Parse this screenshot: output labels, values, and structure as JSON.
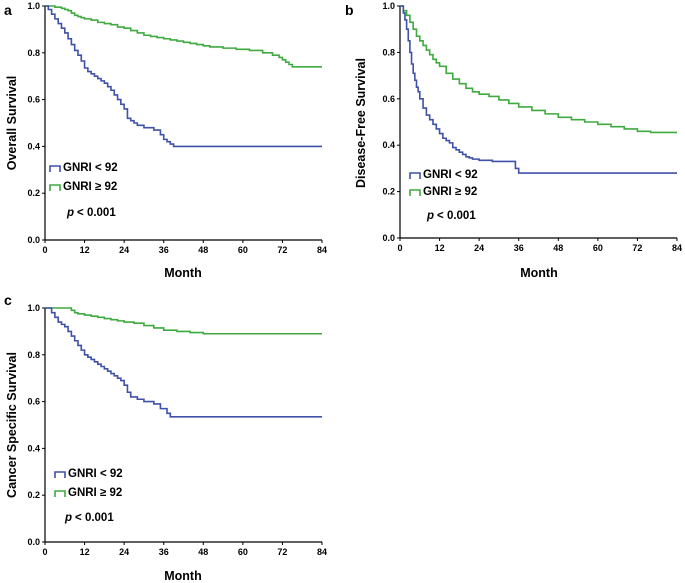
{
  "figure": {
    "width": 685,
    "height": 583
  },
  "chart_data": [
    {
      "panel": "a",
      "type": "line",
      "step": true,
      "title": "",
      "xlabel": "Month",
      "ylabel": "Overall Survival",
      "xlim": [
        0,
        84
      ],
      "ylim": [
        0,
        1.0
      ],
      "x_ticks": [
        0,
        12,
        24,
        36,
        48,
        60,
        72,
        84
      ],
      "y_ticks": [
        0.0,
        0.2,
        0.4,
        0.6,
        0.8,
        1.0
      ],
      "y_tick_labels": [
        "0.0",
        "0.2",
        "0.4",
        "0.6",
        "0.8",
        "1.0"
      ],
      "legend_position": "lower-left",
      "p_value": "< 0.001",
      "p_symbol": "p",
      "series": [
        {
          "name": "GNRI < 92",
          "color": "#3f51a8",
          "x": [
            0,
            1,
            2,
            3,
            4,
            5,
            6,
            7,
            8,
            9,
            10,
            11,
            12,
            13,
            14,
            15,
            16,
            17,
            18,
            19,
            20,
            21,
            22,
            23,
            24,
            25,
            26,
            27,
            28,
            30,
            33,
            35,
            36,
            37,
            38,
            39,
            84
          ],
          "y": [
            1.0,
            0.985,
            0.965,
            0.945,
            0.925,
            0.905,
            0.885,
            0.86,
            0.835,
            0.81,
            0.79,
            0.765,
            0.735,
            0.72,
            0.71,
            0.7,
            0.69,
            0.68,
            0.67,
            0.655,
            0.64,
            0.62,
            0.6,
            0.58,
            0.56,
            0.52,
            0.51,
            0.5,
            0.49,
            0.48,
            0.47,
            0.45,
            0.43,
            0.42,
            0.41,
            0.4,
            0.4
          ]
        },
        {
          "name": "GNRI ≥ 92",
          "color": "#3faa3f",
          "x": [
            0,
            3,
            5,
            6,
            7,
            8,
            9,
            10,
            11,
            12,
            14,
            16,
            18,
            20,
            22,
            24,
            26,
            28,
            30,
            32,
            34,
            36,
            38,
            40,
            42,
            44,
            46,
            48,
            50,
            54,
            58,
            62,
            66,
            69,
            71,
            72,
            73,
            74,
            75,
            84
          ],
          "y": [
            1.0,
            0.995,
            0.99,
            0.985,
            0.98,
            0.97,
            0.96,
            0.955,
            0.95,
            0.945,
            0.94,
            0.93,
            0.925,
            0.92,
            0.91,
            0.905,
            0.895,
            0.885,
            0.875,
            0.87,
            0.865,
            0.86,
            0.855,
            0.85,
            0.845,
            0.84,
            0.835,
            0.83,
            0.825,
            0.82,
            0.815,
            0.81,
            0.8,
            0.79,
            0.78,
            0.77,
            0.76,
            0.75,
            0.74,
            0.74
          ]
        }
      ]
    },
    {
      "panel": "b",
      "type": "line",
      "step": true,
      "title": "",
      "xlabel": "Month",
      "ylabel": "Disease-Free Survival",
      "xlim": [
        0,
        84
      ],
      "ylim": [
        0,
        1.0
      ],
      "x_ticks": [
        0,
        12,
        24,
        36,
        48,
        60,
        72,
        84
      ],
      "y_ticks": [
        0.0,
        0.2,
        0.4,
        0.6,
        0.8,
        1.0
      ],
      "y_tick_labels": [
        "0.0",
        "0.2",
        "0.4",
        "0.6",
        "0.8",
        "1.0"
      ],
      "legend_position": "lower-left",
      "p_value": "< 0.001",
      "p_symbol": "p",
      "series": [
        {
          "name": "GNRI < 92",
          "color": "#3f51a8",
          "x": [
            0,
            1,
            1.5,
            2,
            2.5,
            3,
            3.5,
            4,
            4.5,
            5,
            5.5,
            6,
            7,
            8,
            9,
            10,
            11,
            12,
            13,
            14,
            15,
            16,
            17,
            18,
            19,
            20,
            21,
            22,
            24,
            28,
            32,
            35,
            36,
            84
          ],
          "y": [
            1.0,
            0.97,
            0.94,
            0.9,
            0.85,
            0.8,
            0.75,
            0.71,
            0.68,
            0.65,
            0.63,
            0.6,
            0.56,
            0.53,
            0.51,
            0.49,
            0.47,
            0.45,
            0.43,
            0.42,
            0.41,
            0.39,
            0.38,
            0.37,
            0.36,
            0.35,
            0.345,
            0.34,
            0.335,
            0.33,
            0.33,
            0.3,
            0.28,
            0.28
          ]
        },
        {
          "name": "GNRI ≥ 92",
          "color": "#3faa3f",
          "x": [
            0,
            1,
            2,
            3,
            4,
            5,
            6,
            7,
            8,
            9,
            10,
            11,
            12,
            14,
            16,
            18,
            20,
            22,
            24,
            27,
            30,
            33,
            36,
            40,
            44,
            48,
            52,
            56,
            60,
            64,
            68,
            72,
            76,
            84
          ],
          "y": [
            1.0,
            0.98,
            0.96,
            0.93,
            0.9,
            0.87,
            0.85,
            0.83,
            0.81,
            0.79,
            0.77,
            0.755,
            0.74,
            0.71,
            0.685,
            0.665,
            0.645,
            0.63,
            0.62,
            0.61,
            0.595,
            0.58,
            0.565,
            0.55,
            0.535,
            0.52,
            0.51,
            0.5,
            0.49,
            0.48,
            0.47,
            0.46,
            0.455,
            0.455
          ]
        }
      ]
    },
    {
      "panel": "c",
      "type": "line",
      "step": true,
      "title": "",
      "xlabel": "Month",
      "ylabel": "Cancer Specific Survival",
      "xlim": [
        0,
        84
      ],
      "ylim": [
        0,
        1.0
      ],
      "x_ticks": [
        0,
        12,
        24,
        36,
        48,
        60,
        72,
        84
      ],
      "y_ticks": [
        0.0,
        0.2,
        0.4,
        0.6,
        0.8,
        1.0
      ],
      "y_tick_labels": [
        "0.0",
        "0.2",
        "0.4",
        "0.6",
        "0.8",
        "1.0"
      ],
      "legend_position": "lower-left",
      "p_value": "< 0.001",
      "p_symbol": "p",
      "series": [
        {
          "name": "GNRI < 92",
          "color": "#3f51a8",
          "x": [
            0,
            2,
            3,
            4,
            5,
            6,
            7,
            8,
            9,
            10,
            11,
            12,
            13,
            14,
            15,
            16,
            17,
            18,
            19,
            20,
            21,
            22,
            23,
            24,
            25,
            26,
            28,
            30,
            33,
            35,
            37,
            38,
            84
          ],
          "y": [
            1.0,
            0.98,
            0.96,
            0.94,
            0.93,
            0.92,
            0.9,
            0.88,
            0.86,
            0.84,
            0.82,
            0.8,
            0.79,
            0.78,
            0.77,
            0.76,
            0.75,
            0.74,
            0.73,
            0.72,
            0.71,
            0.7,
            0.69,
            0.67,
            0.64,
            0.62,
            0.61,
            0.6,
            0.59,
            0.57,
            0.55,
            0.535,
            0.535
          ]
        },
        {
          "name": "GNRI ≥ 92",
          "color": "#3faa3f",
          "x": [
            0,
            8,
            9,
            10,
            12,
            14,
            16,
            18,
            20,
            22,
            24,
            27,
            30,
            33,
            36,
            40,
            44,
            48,
            84
          ],
          "y": [
            1.0,
            0.99,
            0.98,
            0.975,
            0.97,
            0.965,
            0.96,
            0.955,
            0.95,
            0.945,
            0.94,
            0.935,
            0.925,
            0.915,
            0.905,
            0.9,
            0.895,
            0.89,
            0.89
          ]
        }
      ]
    }
  ]
}
